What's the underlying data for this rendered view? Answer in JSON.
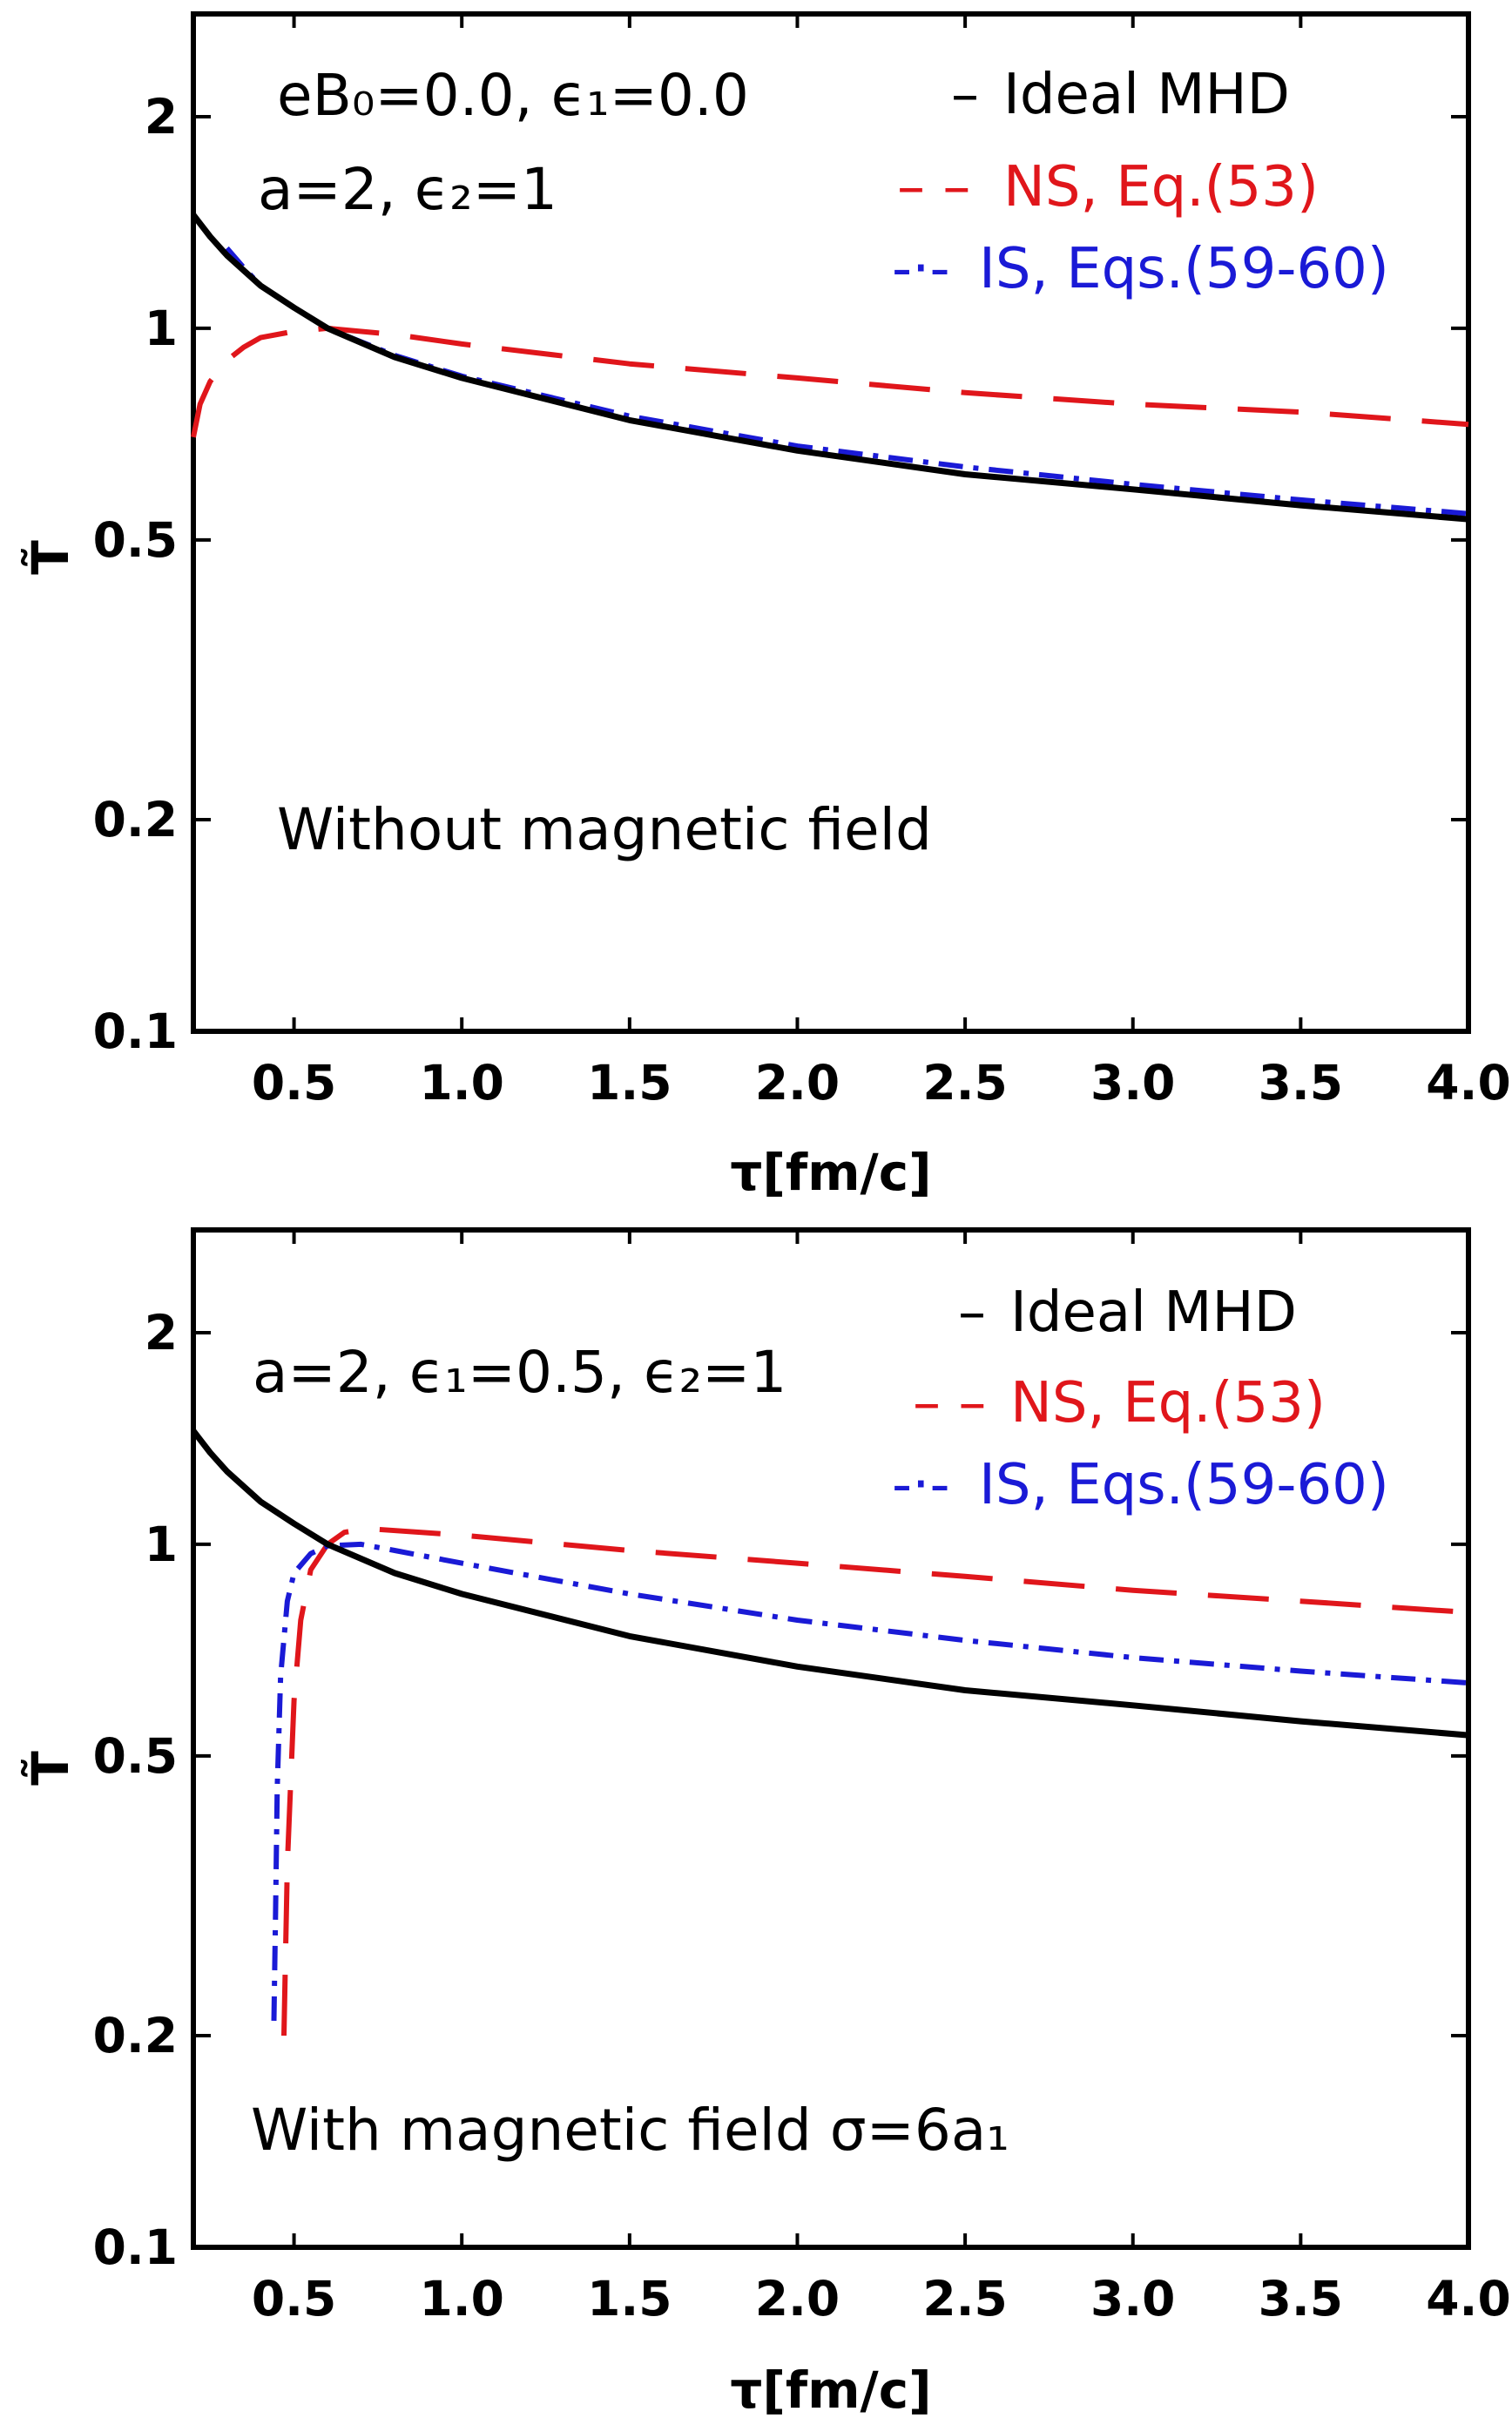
{
  "colors": {
    "ideal": "#000000",
    "ns": "#e0161b",
    "is": "#1a1ad6"
  },
  "chart_data": [
    {
      "type": "line",
      "yscale": "log",
      "xlim": [
        0.2,
        4.0
      ],
      "ylim": [
        0.1,
        2.8
      ],
      "xticks": [
        "0.5",
        "1.0",
        "1.5",
        "2.0",
        "2.5",
        "3.0",
        "3.5",
        "4.0"
      ],
      "yticks": [
        "0.1",
        "0.2",
        "0.5",
        "1",
        "2"
      ],
      "xlabel": "τ[fm/c]",
      "ylabel": "T̃",
      "params_line1": "eB₀=0.0, ϵ₁=0.0",
      "params_line2": "a=2, ϵ₂=1",
      "annotation": "Without magnetic field",
      "legend_position": "top-right",
      "series": [
        {
          "name": "Ideal MHD",
          "legend_symbol": "–",
          "style": "solid",
          "color": "#000000",
          "x": [
            0.2,
            0.25,
            0.3,
            0.4,
            0.5,
            0.6,
            0.8,
            1.0,
            1.5,
            2.0,
            2.5,
            3.0,
            3.5,
            4.0
          ],
          "y": [
            1.45,
            1.35,
            1.27,
            1.15,
            1.07,
            1.0,
            0.91,
            0.85,
            0.74,
            0.67,
            0.62,
            0.59,
            0.56,
            0.535
          ]
        },
        {
          "name": "NS, Eq.(53)",
          "legend_symbol": "– –",
          "style": "dashed",
          "color": "#e0161b",
          "x": [
            0.2,
            0.22,
            0.25,
            0.3,
            0.35,
            0.4,
            0.5,
            0.6,
            0.8,
            1.0,
            1.5,
            2.0,
            2.5,
            3.0,
            3.5,
            4.0
          ],
          "y": [
            0.7,
            0.78,
            0.84,
            0.9,
            0.94,
            0.97,
            0.99,
            1.0,
            0.98,
            0.95,
            0.89,
            0.85,
            0.81,
            0.78,
            0.76,
            0.73
          ]
        },
        {
          "name": "IS, Eqs.(59-60)",
          "legend_symbol": "-·-",
          "style": "dashdot",
          "color": "#1a1ad6",
          "x": [
            0.3,
            0.35,
            0.4,
            0.5,
            0.6,
            0.8,
            1.0,
            1.5,
            2.0,
            2.5,
            3.0,
            3.5,
            4.0
          ],
          "y": [
            1.3,
            1.22,
            1.15,
            1.07,
            1.0,
            0.915,
            0.855,
            0.75,
            0.68,
            0.635,
            0.6,
            0.57,
            0.545
          ]
        }
      ]
    },
    {
      "type": "line",
      "yscale": "log",
      "xlim": [
        0.2,
        4.0
      ],
      "ylim": [
        0.1,
        2.8
      ],
      "xticks": [
        "0.5",
        "1.0",
        "1.5",
        "2.0",
        "2.5",
        "3.0",
        "3.5",
        "4.0"
      ],
      "yticks": [
        "0.1",
        "0.2",
        "0.5",
        "1",
        "2"
      ],
      "xlabel": "τ[fm/c]",
      "ylabel": "T̃",
      "params_line1": "a=2, ϵ₁=0.5, ϵ₂=1",
      "annotation": "With magnetic field σ=6a₁",
      "legend_position": "top-right",
      "series": [
        {
          "name": "Ideal MHD",
          "legend_symbol": "–",
          "style": "solid",
          "color": "#000000",
          "x": [
            0.2,
            0.25,
            0.3,
            0.4,
            0.5,
            0.6,
            0.8,
            1.0,
            1.5,
            2.0,
            2.5,
            3.0,
            3.5,
            4.0
          ],
          "y": [
            1.45,
            1.35,
            1.27,
            1.15,
            1.07,
            1.0,
            0.91,
            0.85,
            0.74,
            0.67,
            0.62,
            0.59,
            0.56,
            0.535
          ]
        },
        {
          "name": "NS, Eq.(53)",
          "legend_symbol": "– –",
          "style": "dashed",
          "color": "#e0161b",
          "x": [
            0.47,
            0.48,
            0.5,
            0.52,
            0.55,
            0.6,
            0.65,
            0.7,
            0.75,
            1.0,
            1.5,
            2.0,
            2.5,
            3.0,
            3.5,
            4.0
          ],
          "y": [
            0.2,
            0.35,
            0.6,
            0.78,
            0.92,
            1.0,
            1.04,
            1.05,
            1.05,
            1.03,
            0.98,
            0.94,
            0.9,
            0.86,
            0.83,
            0.8
          ]
        },
        {
          "name": "IS, Eqs.(59-60)",
          "legend_symbol": "-·-",
          "style": "dashdot",
          "color": "#1a1ad6",
          "x": [
            0.44,
            0.445,
            0.45,
            0.46,
            0.48,
            0.5,
            0.55,
            0.6,
            0.7,
            0.8,
            1.0,
            1.5,
            2.0,
            2.5,
            3.0,
            3.5,
            4.0
          ],
          "y": [
            0.21,
            0.3,
            0.45,
            0.65,
            0.83,
            0.91,
            0.97,
            0.995,
            1.0,
            0.98,
            0.94,
            0.85,
            0.78,
            0.73,
            0.69,
            0.66,
            0.635
          ]
        }
      ]
    }
  ]
}
